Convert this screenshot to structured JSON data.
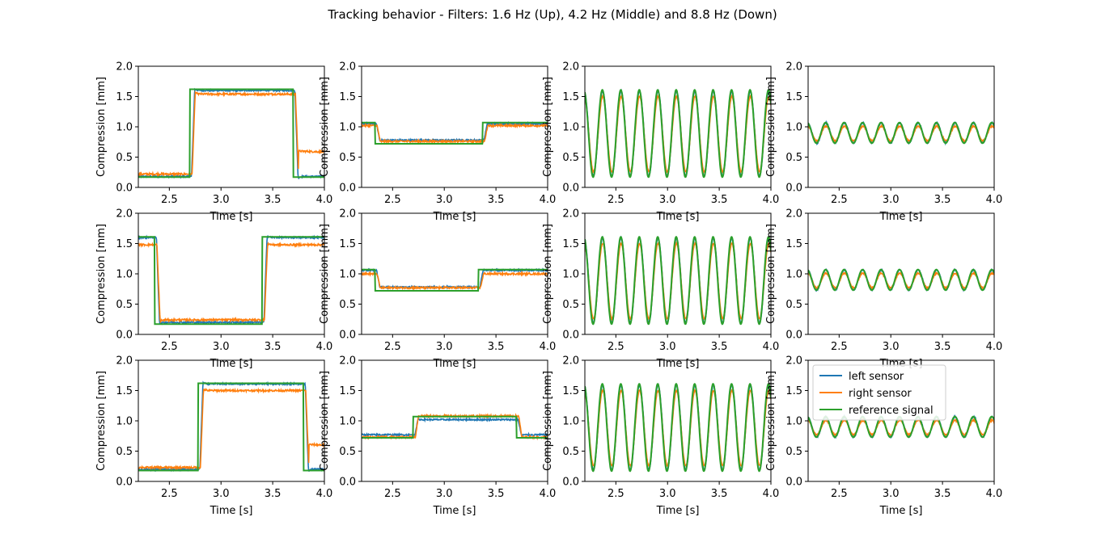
{
  "figure": {
    "title": "Tracking behavior - Filters: 1.6 Hz (Up), 4.2 Hz (Middle) and 8.8 Hz (Down)"
  },
  "colors": {
    "left_sensor": "#1f77b4",
    "right_sensor": "#ff7f0e",
    "reference_signal": "#2ca02c"
  },
  "legend": {
    "placement": "upper-left of bottom-right panel",
    "entries": [
      "left sensor",
      "right sensor",
      "reference signal"
    ]
  },
  "chart_data": [
    {
      "type": "line",
      "row": 0,
      "col": 0,
      "signal": "step",
      "ref_low": 0.17,
      "ref_high": 1.62,
      "step_up_t": 2.7,
      "step_down_t": 3.7,
      "left_low": 0.18,
      "left_high": 1.6,
      "right_low": 0.22,
      "right_high": 1.54,
      "right_tail": 0.38,
      "xlabel": "Time [s]",
      "ylabel": "Compression [mm]",
      "xlim": [
        2.2,
        4.0
      ],
      "ylim": [
        0,
        2.0
      ],
      "xticks": [
        "2.5",
        "3.0",
        "3.5",
        "4.0"
      ],
      "yticks": [
        "0.0",
        "0.5",
        "1.0",
        "1.5",
        "2.0"
      ],
      "series": [
        {
          "name": "left sensor"
        },
        {
          "name": "right sensor"
        },
        {
          "name": "reference signal"
        }
      ]
    },
    {
      "type": "line",
      "row": 0,
      "col": 1,
      "signal": "step",
      "ref_high": 1.07,
      "ref_low": 0.72,
      "step_down_t": 2.33,
      "step_up_t": 3.37,
      "left_low": 0.78,
      "left_high": 1.05,
      "right_low": 0.76,
      "right_high": 1.02,
      "xlabel": "Time [s]",
      "ylabel": "Compression [mm]",
      "xlim": [
        2.2,
        4.0
      ],
      "ylim": [
        0,
        2.0
      ],
      "xticks": [
        "2.5",
        "3.0",
        "3.5",
        "4.0"
      ],
      "yticks": [
        "0.0",
        "0.5",
        "1.0",
        "1.5",
        "2.0"
      ],
      "series": [
        {
          "name": "left sensor"
        },
        {
          "name": "right sensor"
        },
        {
          "name": "reference signal"
        }
      ]
    },
    {
      "type": "line",
      "row": 0,
      "col": 2,
      "signal": "sine",
      "freq_hz": 5.6,
      "ref_mean": 0.89,
      "ref_amp": 0.72,
      "right_amp": 0.62,
      "xlabel": "Time [s]",
      "ylabel": "Compression [mm]",
      "xlim": [
        2.2,
        4.0
      ],
      "ylim": [
        0,
        2.0
      ],
      "xticks": [
        "2.5",
        "3.0",
        "3.5",
        "4.0"
      ],
      "yticks": [
        "0.0",
        "0.5",
        "1.0",
        "1.5",
        "2.0"
      ],
      "series": [
        {
          "name": "left sensor"
        },
        {
          "name": "right sensor"
        },
        {
          "name": "reference signal"
        }
      ]
    },
    {
      "type": "line",
      "row": 0,
      "col": 3,
      "signal": "sine",
      "freq_hz": 5.6,
      "ref_mean": 0.9,
      "ref_amp": 0.17,
      "right_amp": 0.12,
      "xlabel": "Time [s]",
      "ylabel": "Compression [mm]",
      "xlim": [
        2.2,
        4.0
      ],
      "ylim": [
        0,
        2.0
      ],
      "xticks": [
        "2.5",
        "3.0",
        "3.5",
        "4.0"
      ],
      "yticks": [
        "0.0",
        "0.5",
        "1.0",
        "1.5",
        "2.0"
      ],
      "series": [
        {
          "name": "left sensor"
        },
        {
          "name": "right sensor"
        },
        {
          "name": "reference signal"
        }
      ]
    },
    {
      "type": "line",
      "row": 1,
      "col": 0,
      "signal": "step",
      "ref_high": 1.61,
      "ref_low": 0.17,
      "step_down_t": 2.36,
      "step_up_t": 3.4,
      "left_low": 0.2,
      "left_high": 1.6,
      "right_high": 1.48,
      "right_low": 0.24,
      "xlabel": "Time [s]",
      "ylabel": "Compression [mm]",
      "xlim": [
        2.2,
        4.0
      ],
      "ylim": [
        0,
        2.0
      ],
      "xticks": [
        "2.5",
        "3.0",
        "3.5",
        "4.0"
      ],
      "yticks": [
        "0.0",
        "0.5",
        "1.0",
        "1.5",
        "2.0"
      ],
      "series": [
        {
          "name": "left sensor"
        },
        {
          "name": "right sensor"
        },
        {
          "name": "reference signal"
        }
      ]
    },
    {
      "type": "line",
      "row": 1,
      "col": 1,
      "signal": "step",
      "ref_high": 1.07,
      "ref_low": 0.72,
      "step_down_t": 2.33,
      "step_up_t": 3.33,
      "left_low": 0.78,
      "left_high": 1.06,
      "right_low": 0.77,
      "right_high": 1.0,
      "xlabel": "Time [s]",
      "ylabel": "Compression [mm]",
      "xlim": [
        2.2,
        4.0
      ],
      "ylim": [
        0,
        2.0
      ],
      "xticks": [
        "2.5",
        "3.0",
        "3.5",
        "4.0"
      ],
      "yticks": [
        "0.0",
        "0.5",
        "1.0",
        "1.5",
        "2.0"
      ],
      "series": [
        {
          "name": "left sensor"
        },
        {
          "name": "right sensor"
        },
        {
          "name": "reference signal"
        }
      ]
    },
    {
      "type": "line",
      "row": 1,
      "col": 2,
      "signal": "sine",
      "freq_hz": 5.6,
      "ref_mean": 0.89,
      "ref_amp": 0.72,
      "right_amp": 0.62,
      "xlabel": "Time [s]",
      "ylabel": "Compression [mm]",
      "xlim": [
        2.2,
        4.0
      ],
      "ylim": [
        0,
        2.0
      ],
      "xticks": [
        "2.5",
        "3.0",
        "3.5",
        "4.0"
      ],
      "yticks": [
        "0.0",
        "0.5",
        "1.0",
        "1.5",
        "2.0"
      ],
      "series": [
        {
          "name": "left sensor"
        },
        {
          "name": "right sensor"
        },
        {
          "name": "reference signal"
        }
      ]
    },
    {
      "type": "line",
      "row": 1,
      "col": 3,
      "signal": "sine",
      "freq_hz": 5.6,
      "ref_mean": 0.9,
      "ref_amp": 0.17,
      "right_amp": 0.12,
      "xlabel": "Time [s]",
      "ylabel": "Compression [mm]",
      "xlim": [
        2.2,
        4.0
      ],
      "ylim": [
        0,
        2.0
      ],
      "xticks": [
        "2.5",
        "3.0",
        "3.5",
        "4.0"
      ],
      "yticks": [
        "0.0",
        "0.5",
        "1.0",
        "1.5",
        "2.0"
      ],
      "series": [
        {
          "name": "left sensor"
        },
        {
          "name": "right sensor"
        },
        {
          "name": "reference signal"
        }
      ]
    },
    {
      "type": "line",
      "row": 2,
      "col": 0,
      "signal": "step",
      "ref_low": 0.18,
      "ref_high": 1.62,
      "step_up_t": 2.78,
      "step_down_t": 3.8,
      "left_low": 0.2,
      "left_high": 1.61,
      "right_low": 0.23,
      "right_high": 1.5,
      "right_tail": 0.38,
      "xlabel": "Time [s]",
      "ylabel": "Compression [mm]",
      "xlim": [
        2.2,
        4.0
      ],
      "ylim": [
        0,
        2.0
      ],
      "xticks": [
        "2.5",
        "3.0",
        "3.5",
        "4.0"
      ],
      "yticks": [
        "0.0",
        "0.5",
        "1.0",
        "1.5",
        "2.0"
      ],
      "series": [
        {
          "name": "left sensor"
        },
        {
          "name": "right sensor"
        },
        {
          "name": "reference signal"
        }
      ]
    },
    {
      "type": "line",
      "row": 2,
      "col": 1,
      "signal": "step",
      "ref_low": 0.72,
      "ref_high": 1.07,
      "step_up_t": 2.7,
      "step_down_t": 3.7,
      "left_low": 0.77,
      "left_high": 1.02,
      "right_low": 0.73,
      "right_high": 1.08,
      "xlabel": "Time [s]",
      "ylabel": "Compression [mm]",
      "xlim": [
        2.2,
        4.0
      ],
      "ylim": [
        0,
        2.0
      ],
      "xticks": [
        "2.5",
        "3.0",
        "3.5",
        "4.0"
      ],
      "yticks": [
        "0.0",
        "0.5",
        "1.0",
        "1.5",
        "2.0"
      ],
      "series": [
        {
          "name": "left sensor"
        },
        {
          "name": "right sensor"
        },
        {
          "name": "reference signal"
        }
      ]
    },
    {
      "type": "line",
      "row": 2,
      "col": 2,
      "signal": "sine",
      "freq_hz": 5.6,
      "ref_mean": 0.89,
      "ref_amp": 0.72,
      "right_amp": 0.62,
      "xlabel": "Time [s]",
      "ylabel": "Compression [mm]",
      "xlim": [
        2.2,
        4.0
      ],
      "ylim": [
        0,
        2.0
      ],
      "xticks": [
        "2.5",
        "3.0",
        "3.5",
        "4.0"
      ],
      "yticks": [
        "0.0",
        "0.5",
        "1.0",
        "1.5",
        "2.0"
      ],
      "series": [
        {
          "name": "left sensor"
        },
        {
          "name": "right sensor"
        },
        {
          "name": "reference signal"
        }
      ]
    },
    {
      "type": "line",
      "row": 2,
      "col": 3,
      "signal": "sine",
      "freq_hz": 5.6,
      "ref_mean": 0.9,
      "ref_amp": 0.17,
      "right_amp": 0.12,
      "xlabel": "Time [s]",
      "ylabel": "Compression [mm]",
      "xlim": [
        2.2,
        4.0
      ],
      "ylim": [
        0,
        2.0
      ],
      "xticks": [
        "2.5",
        "3.0",
        "3.5",
        "4.0"
      ],
      "yticks": [
        "0.0",
        "0.5",
        "1.0",
        "1.5",
        "2.0"
      ],
      "series": [
        {
          "name": "left sensor"
        },
        {
          "name": "right sensor"
        },
        {
          "name": "reference signal"
        }
      ]
    }
  ]
}
